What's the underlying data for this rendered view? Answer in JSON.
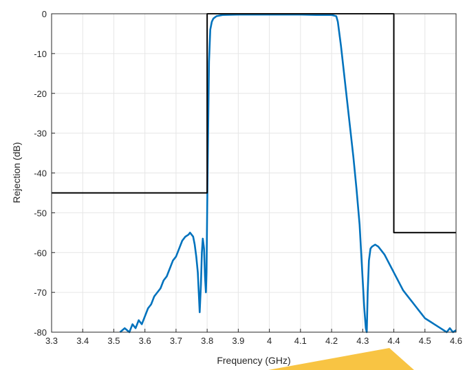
{
  "chart_data": {
    "type": "line",
    "title": "",
    "xlabel": "Frequency (GHz)",
    "ylabel": "Rejection (dB)",
    "xlim": [
      3.3,
      4.6
    ],
    "ylim": [
      -80,
      0
    ],
    "grid": true,
    "x_ticks": [
      "3.3",
      "3.4",
      "3.5",
      "3.6",
      "3.7",
      "3.8",
      "3.9",
      "4",
      "4.1",
      "4.2",
      "4.3",
      "4.4",
      "4.5",
      "4.6"
    ],
    "y_ticks": [
      "0",
      "-10",
      "-20",
      "-30",
      "-40",
      "-50",
      "-60",
      "-70",
      "-80"
    ],
    "series": [
      {
        "color": "#0072BD",
        "x": [
          3.52,
          3.535,
          3.55,
          3.56,
          3.57,
          3.58,
          3.59,
          3.6,
          3.61,
          3.62,
          3.63,
          3.64,
          3.65,
          3.66,
          3.67,
          3.68,
          3.69,
          3.7,
          3.71,
          3.72,
          3.73,
          3.74,
          3.745,
          3.75,
          3.755,
          3.76,
          3.765,
          3.77,
          3.773,
          3.776,
          3.78,
          3.783,
          3.786,
          3.79,
          3.793,
          3.796,
          3.798,
          3.8,
          3.803,
          3.806,
          3.81,
          3.815,
          3.82,
          3.83,
          3.85,
          3.9,
          4.0,
          4.1,
          4.15,
          4.2,
          4.215,
          4.22,
          4.23,
          4.24,
          4.25,
          4.26,
          4.27,
          4.28,
          4.29,
          4.295,
          4.3,
          4.305,
          4.31,
          4.313,
          4.316,
          4.32,
          4.325,
          4.33,
          4.34,
          4.35,
          4.36,
          4.37,
          4.38,
          4.39,
          4.4,
          4.41,
          4.42,
          4.43,
          4.44,
          4.45,
          4.46,
          4.47,
          4.48,
          4.49,
          4.5,
          4.51,
          4.52,
          4.53,
          4.54,
          4.55,
          4.56,
          4.57,
          4.58,
          4.59,
          4.6
        ],
        "y": [
          -80,
          -79,
          -80,
          -78,
          -79,
          -77,
          -78,
          -76,
          -74,
          -73,
          -71,
          -70,
          -69,
          -67,
          -66,
          -64,
          -62,
          -61,
          -59,
          -57,
          -56,
          -55.5,
          -55,
          -55.5,
          -56,
          -58,
          -61,
          -65,
          -70,
          -75,
          -68,
          -60,
          -56.5,
          -59,
          -66,
          -70,
          -65,
          -50,
          -30,
          -12,
          -4,
          -2,
          -1.2,
          -0.6,
          -0.3,
          -0.2,
          -0.2,
          -0.2,
          -0.3,
          -0.3,
          -0.6,
          -2,
          -8,
          -15,
          -22,
          -29,
          -36,
          -44,
          -53,
          -60,
          -67,
          -74,
          -79,
          -80,
          -70,
          -62,
          -59,
          -58.5,
          -58,
          -58.5,
          -59.5,
          -60.5,
          -62,
          -63.5,
          -65,
          -66.5,
          -68,
          -69.5,
          -70.5,
          -71.5,
          -72.5,
          -73.5,
          -74.5,
          -75.5,
          -76.5,
          -77,
          -77.5,
          -78,
          -78.5,
          -79,
          -79.5,
          -80,
          -79,
          -80,
          -79.5
        ]
      },
      {
        "color": "#000000",
        "x": [
          3.3,
          3.8,
          3.8,
          4.4,
          4.4,
          4.6
        ],
        "y": [
          -45,
          -45,
          0,
          0,
          -55,
          -55
        ]
      }
    ]
  }
}
